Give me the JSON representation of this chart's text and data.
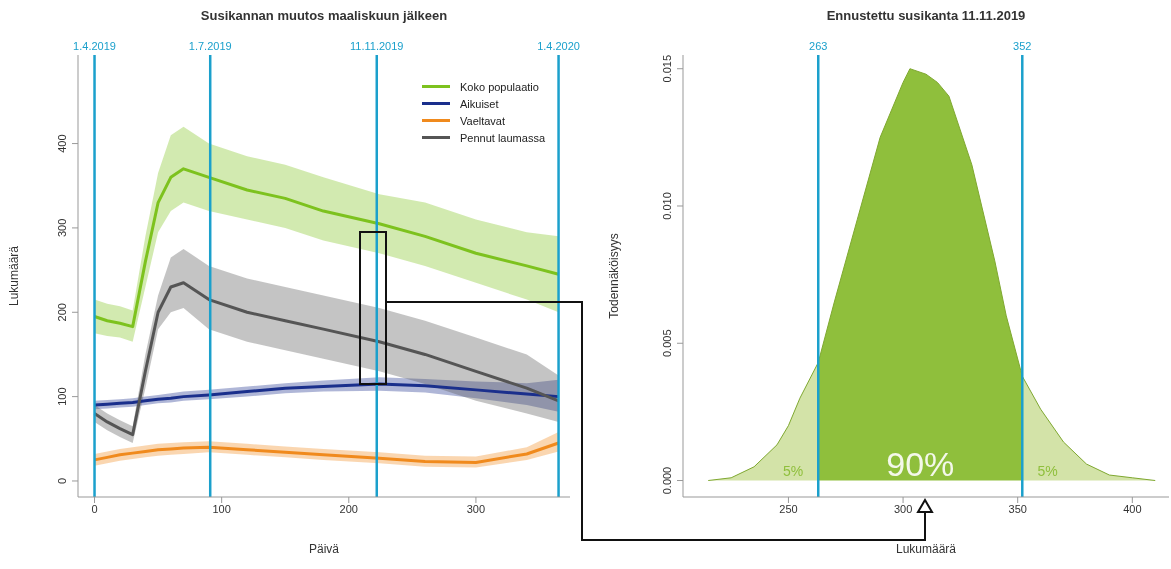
{
  "chart_data": [
    {
      "type": "line",
      "title": "Susikannan muutos maaliskuun jälkeen",
      "xlabel": "Päivä",
      "ylabel": "Lukumäärä",
      "x": [
        0,
        10,
        20,
        30,
        40,
        50,
        60,
        70,
        90,
        120,
        150,
        180,
        224,
        260,
        300,
        340,
        365
      ],
      "series": [
        {
          "name": "Koko populaatio",
          "color": "#7dc21e",
          "values": [
            195,
            190,
            187,
            183,
            260,
            330,
            360,
            370,
            360,
            345,
            335,
            320,
            305,
            290,
            270,
            255,
            245
          ],
          "lower": [
            175,
            172,
            170,
            165,
            230,
            295,
            320,
            330,
            320,
            310,
            300,
            285,
            270,
            255,
            235,
            215,
            200
          ],
          "upper": [
            215,
            210,
            207,
            202,
            290,
            365,
            410,
            420,
            400,
            385,
            375,
            360,
            340,
            330,
            310,
            295,
            290
          ]
        },
        {
          "name": "Aikuiset",
          "color": "#1a2f8c",
          "values": [
            90,
            91,
            92,
            93,
            95,
            97,
            98,
            100,
            102,
            106,
            110,
            112,
            115,
            113,
            108,
            103,
            100
          ],
          "lower": [
            85,
            86,
            87,
            88,
            90,
            92,
            93,
            95,
            97,
            100,
            104,
            106,
            107,
            105,
            98,
            90,
            82
          ],
          "upper": [
            95,
            96,
            97,
            98,
            100,
            102,
            104,
            106,
            108,
            112,
            116,
            119,
            123,
            121,
            118,
            116,
            120
          ]
        },
        {
          "name": "Vaeltavat",
          "color": "#f08a1d",
          "values": [
            25,
            28,
            31,
            33,
            35,
            37,
            38,
            39,
            40,
            37,
            34,
            31,
            27,
            23,
            22,
            32,
            45
          ],
          "lower": [
            18,
            21,
            24,
            26,
            28,
            30,
            31,
            32,
            34,
            31,
            28,
            25,
            21,
            17,
            16,
            25,
            35
          ],
          "upper": [
            32,
            35,
            38,
            40,
            42,
            44,
            45,
            46,
            47,
            44,
            41,
            38,
            34,
            30,
            29,
            40,
            58
          ]
        },
        {
          "name": "Pennut laumassa",
          "color": "#555555",
          "values": [
            80,
            70,
            62,
            55,
            130,
            200,
            230,
            235,
            215,
            200,
            190,
            180,
            165,
            150,
            130,
            110,
            95
          ],
          "lower": [
            70,
            60,
            52,
            45,
            110,
            180,
            200,
            205,
            180,
            165,
            155,
            145,
            130,
            115,
            95,
            80,
            70
          ],
          "upper": [
            90,
            80,
            72,
            65,
            150,
            220,
            265,
            275,
            255,
            240,
            230,
            220,
            205,
            190,
            170,
            150,
            125
          ]
        }
      ],
      "xlim": [
        -13,
        374
      ],
      "xticks": [
        0,
        100,
        200,
        300
      ],
      "ylim": [
        -19,
        505
      ],
      "yticks": [
        0,
        100,
        200,
        300,
        400
      ],
      "legend": "top right",
      "grid": false,
      "ref_lines": [
        {
          "axis": "x",
          "value": 0,
          "label": "1.4.2019",
          "color": "#1ba0cc"
        },
        {
          "axis": "x",
          "value": 91,
          "label": "1.7.2019",
          "color": "#1ba0cc"
        },
        {
          "axis": "x",
          "value": 222,
          "label": "11.11.2019",
          "color": "#1ba0cc"
        },
        {
          "axis": "x",
          "value": 365,
          "label": "1.4.2020",
          "color": "#1ba0cc"
        }
      ]
    },
    {
      "type": "area",
      "title": "Ennustettu susikanta 11.11.2019",
      "xlabel": "Lukumäärä",
      "ylabel": "Todennäköisyys",
      "series": [
        {
          "color": "#d3e3a8",
          "x": [
            215,
            225,
            235,
            245,
            250,
            255,
            263
          ],
          "values": [
            0,
            0.0001,
            0.0005,
            0.0013,
            0.002,
            0.003,
            0.0043
          ]
        },
        {
          "color": "#8fbf3c",
          "x": [
            263,
            270,
            280,
            290,
            300,
            303,
            310,
            315,
            320,
            330,
            340,
            345,
            352
          ],
          "values": [
            0.0043,
            0.0065,
            0.0095,
            0.0125,
            0.0145,
            0.015,
            0.0148,
            0.0145,
            0.014,
            0.0115,
            0.008,
            0.006,
            0.0038
          ]
        },
        {
          "color": "#d3e3a8",
          "x": [
            352,
            360,
            370,
            380,
            390,
            400,
            410
          ],
          "values": [
            0.0038,
            0.0026,
            0.0014,
            0.0006,
            0.0002,
            0.0001,
            0
          ]
        }
      ],
      "xlim": [
        204,
        416
      ],
      "xticks": [
        250,
        300,
        350,
        400
      ],
      "ylim": [
        -0.0006,
        0.0155
      ],
      "yticks": [
        {
          "value": 0,
          "label": "0.000"
        },
        {
          "value": 0.005,
          "label": "0.005"
        },
        {
          "value": 0.01,
          "label": "0.010"
        },
        {
          "value": 0.015,
          "label": "0.015"
        }
      ],
      "legend": false,
      "grid": false,
      "ref_lines": [
        {
          "axis": "x",
          "value": 263,
          "label": "263",
          "color": "#1ba0cc"
        },
        {
          "axis": "x",
          "value": 352,
          "label": "352",
          "color": "#1ba0cc"
        }
      ],
      "annotations": [
        "5%",
        "90%",
        "5%"
      ]
    }
  ]
}
